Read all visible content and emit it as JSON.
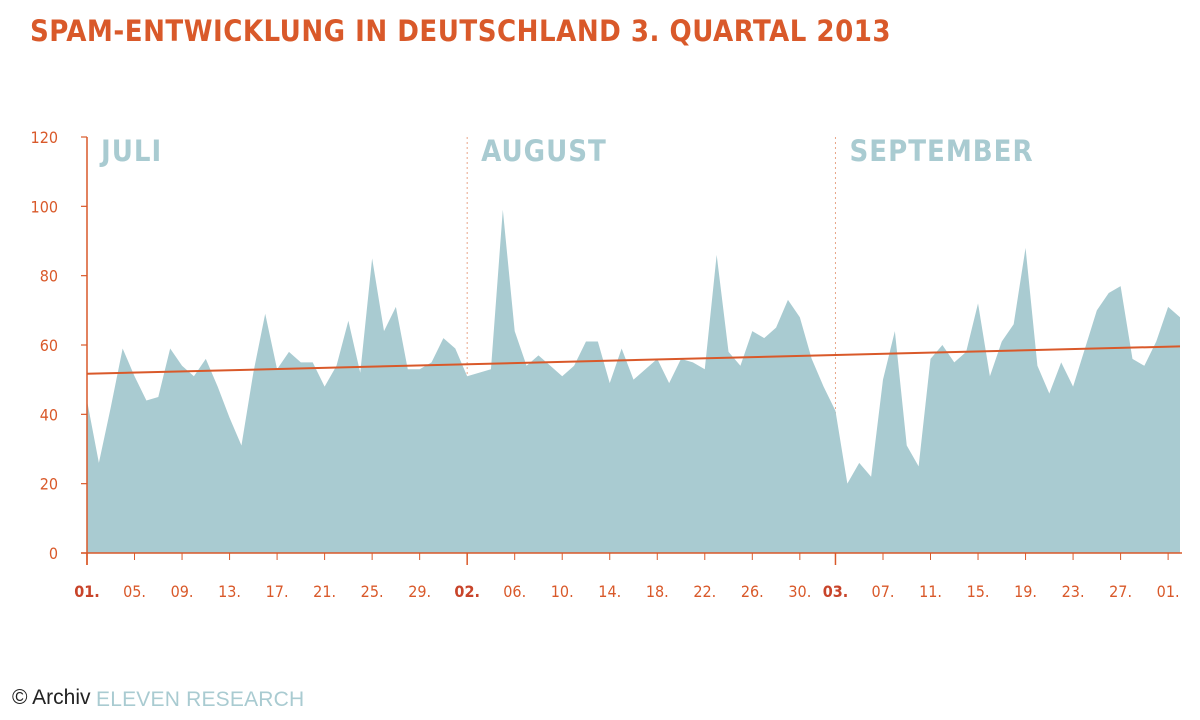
{
  "title": "SPAM-ENTWICKLUNG IN DEUTSCHLAND 3. QUARTAL 2013",
  "footer": {
    "source": "ELEVEN RESEARCH",
    "credit": "© Archiv"
  },
  "colors": {
    "accent": "#d9592a",
    "area": "#a9cbd1",
    "month_label": "#a9cbd1"
  },
  "chart_data": {
    "type": "area",
    "title": "SPAM-ENTWICKLUNG IN DEUTSCHLAND 3. QUARTAL 2013",
    "xlabel": "",
    "ylabel": "",
    "ylim": [
      0,
      120
    ],
    "y_ticks": [
      0,
      20,
      40,
      60,
      80,
      100,
      120
    ],
    "month_labels": [
      "JULI",
      "AUGUST",
      "SEPTEMBER"
    ],
    "x_tick_labels": [
      {
        "day": 1,
        "label": "01.",
        "bold": true
      },
      {
        "day": 5,
        "label": "05."
      },
      {
        "day": 9,
        "label": "09."
      },
      {
        "day": 13,
        "label": "13."
      },
      {
        "day": 17,
        "label": "17."
      },
      {
        "day": 21,
        "label": "21."
      },
      {
        "day": 25,
        "label": "25."
      },
      {
        "day": 29,
        "label": "29."
      },
      {
        "day": 33,
        "label": "02.",
        "bold": true
      },
      {
        "day": 37,
        "label": "06."
      },
      {
        "day": 41,
        "label": "10."
      },
      {
        "day": 45,
        "label": "14."
      },
      {
        "day": 49,
        "label": "18."
      },
      {
        "day": 53,
        "label": "22."
      },
      {
        "day": 57,
        "label": "26."
      },
      {
        "day": 61,
        "label": "30."
      },
      {
        "day": 64,
        "label": "03.",
        "bold": true
      },
      {
        "day": 68,
        "label": "07."
      },
      {
        "day": 72,
        "label": "11."
      },
      {
        "day": 76,
        "label": "15."
      },
      {
        "day": 80,
        "label": "19."
      },
      {
        "day": 84,
        "label": "23."
      },
      {
        "day": 88,
        "label": "27."
      },
      {
        "day": 92,
        "label": "01."
      }
    ],
    "month_starts": [
      1,
      33,
      64
    ],
    "series": [
      {
        "values": [
          44,
          26,
          42,
          59,
          51,
          44,
          45,
          59,
          54,
          51,
          56,
          48,
          39,
          31,
          52,
          69,
          53,
          58,
          55,
          55,
          48,
          54,
          67,
          52,
          85,
          64,
          71,
          53,
          53,
          55,
          62,
          59,
          51,
          52,
          53,
          99,
          64,
          54,
          57,
          54,
          51,
          54,
          61,
          61,
          49,
          59,
          50,
          53,
          56,
          49,
          56,
          55,
          53,
          86,
          58,
          54,
          64,
          62,
          65,
          73,
          68,
          56,
          48,
          41,
          20,
          26,
          22,
          50,
          64,
          31,
          25,
          56,
          60,
          55,
          58,
          72,
          51,
          61,
          66,
          88,
          54,
          46,
          55,
          48,
          59,
          70,
          75,
          77,
          56,
          54,
          61,
          71,
          68
        ]
      }
    ],
    "trendline": {
      "start": 51.7,
      "end": 59.6
    }
  }
}
